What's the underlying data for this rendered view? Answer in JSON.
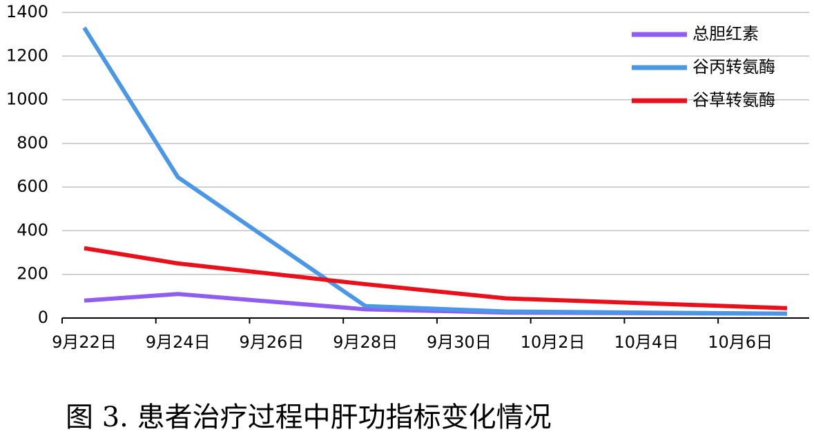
{
  "chart_data": {
    "type": "line",
    "caption": "图 3. 患者治疗过程中肝功指标变化情况",
    "x": [
      "9月22日",
      "9月24日",
      "9月28日",
      "10月1日",
      "10月7日"
    ],
    "series": [
      {
        "name": "总胆红素",
        "color": "#8f5ef0",
        "values": [
          80,
          110,
          40,
          25,
          20
        ]
      },
      {
        "name": "谷丙转氨酶",
        "color": "#4a97e8",
        "values": [
          1330,
          645,
          55,
          30,
          20
        ]
      },
      {
        "name": "谷草转氨酶",
        "color": "#e8101a",
        "values": [
          320,
          250,
          155,
          90,
          45
        ]
      }
    ],
    "xlim": [
      "9月22日",
      "10月7日"
    ],
    "xticks": [
      "9月22日",
      "9月24日",
      "9月26日",
      "9月28日",
      "9月30日",
      "10月2日",
      "10月4日",
      "10月6日"
    ],
    "ylim": [
      0,
      1400
    ],
    "yticks": [
      0,
      200,
      400,
      600,
      800,
      1000,
      1200,
      1400
    ],
    "grid": true,
    "legend": "top-right"
  }
}
